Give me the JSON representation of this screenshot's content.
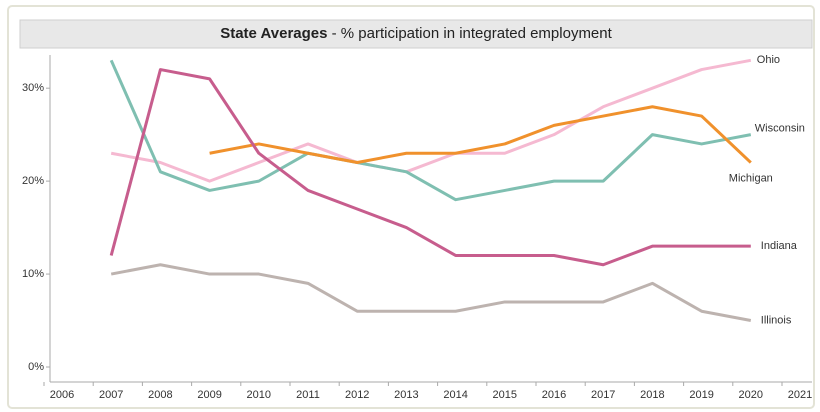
{
  "chart_data": {
    "type": "line",
    "title": "State Averages",
    "subtitle": "- % participation in integrated employment",
    "x": [
      2007,
      2008,
      2009,
      2010,
      2011,
      2012,
      2013,
      2014,
      2015,
      2016,
      2017,
      2018,
      2019,
      2020
    ],
    "series": [
      {
        "name": "Ohio",
        "color": "#f5b9d1",
        "values": [
          23,
          22,
          20,
          22,
          24,
          22,
          21,
          23,
          23,
          25,
          28,
          30,
          32,
          33
        ]
      },
      {
        "name": "Wisconsin",
        "color": "#7fbfb1",
        "values": [
          33,
          21,
          19,
          20,
          23,
          22,
          21,
          18,
          19,
          20,
          20,
          25,
          24,
          25
        ]
      },
      {
        "name": "Michigan",
        "color": "#f0912c",
        "values": [
          null,
          null,
          23,
          24,
          23,
          22,
          23,
          23,
          24,
          26,
          27,
          28,
          27,
          22
        ]
      },
      {
        "name": "Indiana",
        "color": "#c75d8d",
        "values": [
          12,
          32,
          31,
          23,
          19,
          17,
          15,
          12,
          12,
          12,
          11,
          13,
          13,
          13
        ]
      },
      {
        "name": "Illinois",
        "color": "#bdb3af",
        "values": [
          10,
          11,
          10,
          10,
          9,
          6,
          6,
          6,
          7,
          7,
          7,
          9,
          6,
          5
        ]
      }
    ],
    "xlim": [
      2006,
      2021
    ],
    "xticks": [
      2006,
      2007,
      2008,
      2009,
      2010,
      2011,
      2012,
      2013,
      2014,
      2015,
      2016,
      2017,
      2018,
      2019,
      2020,
      2021
    ],
    "ylim": [
      0,
      34
    ],
    "yticks": [
      {
        "value": 0,
        "label": "0%"
      },
      {
        "value": 10,
        "label": "10%"
      },
      {
        "value": 20,
        "label": "20%"
      },
      {
        "value": 30,
        "label": "30%"
      }
    ],
    "grid": false
  }
}
